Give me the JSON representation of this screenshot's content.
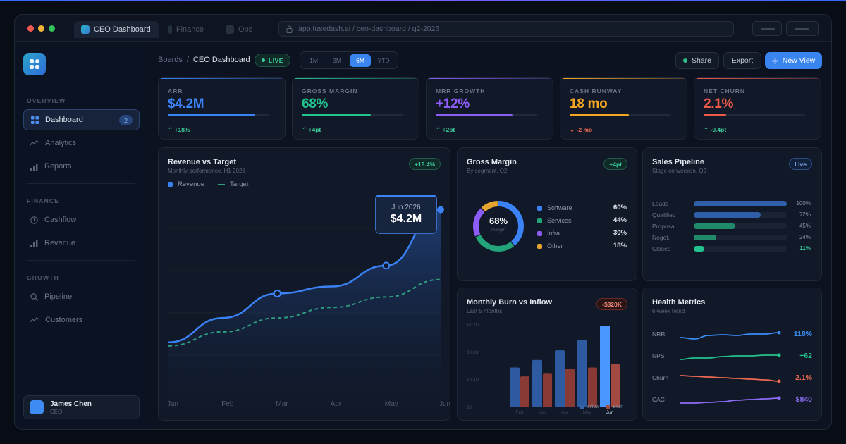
{
  "browser": {
    "tabs": [
      "CEO Dashboard",
      "Finance",
      "Ops"
    ],
    "url": "app.fusedash.ai / ceo-dashboard / q2-2026"
  },
  "sidebar": {
    "sections": {
      "overview": "OVERVIEW",
      "finance": "FINANCE",
      "growth": "GROWTH"
    },
    "items": [
      {
        "label": "Dashboard",
        "icon": "grid-icon",
        "badge": "2",
        "active": true
      },
      {
        "label": "Analytics",
        "icon": "wave-icon"
      },
      {
        "label": "Reports",
        "icon": "bars-icon"
      },
      {
        "label": "Cashflow",
        "icon": "clock-icon"
      },
      {
        "label": "Revenue",
        "icon": "bars-icon"
      },
      {
        "label": "Pipeline",
        "icon": "search-icon"
      },
      {
        "label": "Customers",
        "icon": "wave-icon"
      }
    ],
    "user": {
      "name": "James Chen",
      "role": "CEO"
    }
  },
  "header": {
    "breadcrumb_root": "Boards",
    "breadcrumb_sep": "/",
    "breadcrumb_current": "CEO Dashboard",
    "live": "LIVE",
    "ranges": [
      "1M",
      "3M",
      "6M",
      "YTD"
    ],
    "selected_range": "6M",
    "share": "Share",
    "export": "Export",
    "new_view": "New View"
  },
  "kpis": [
    {
      "label": "ARR",
      "value": "$4.2M",
      "delta": "+18%",
      "direction": "up",
      "progress": 0.86,
      "color": "#3b82f6"
    },
    {
      "label": "GROSS MARGIN",
      "value": "68%",
      "delta": "+4pt",
      "direction": "up",
      "progress": 0.68,
      "color": "#22c38e"
    },
    {
      "label": "MRR GROWTH",
      "value": "+12%",
      "delta": "+2pt",
      "direction": "up",
      "progress": 0.76,
      "color": "#8b5cf6"
    },
    {
      "label": "CASH RUNWAY",
      "value": "18 mo",
      "delta": "-2 mo",
      "direction": "down",
      "progress": 0.58,
      "color": "#f5a524"
    },
    {
      "label": "NET CHURN",
      "value": "2.1%",
      "delta": "-0.4pt",
      "direction": "up",
      "progress": 0.22,
      "color": "#ef5a4a"
    }
  ],
  "revenue": {
    "title": "Revenue vs Target",
    "subtitle": "Monthly performance, H1 2026",
    "badge": "+18.4%",
    "legend_revenue": "Revenue",
    "legend_target": "Target",
    "tooltip_month": "Jun 2026",
    "tooltip_value": "$4.2M"
  },
  "gross_margin": {
    "title": "Gross Margin",
    "subtitle": "By segment, Q2",
    "badge": "+4pt",
    "center_value": "68%",
    "center_label": "margin",
    "segments": [
      {
        "name": "Software",
        "value": "60%",
        "color": "#3b82f6"
      },
      {
        "name": "Services",
        "value": "44%",
        "color": "#22a37a"
      },
      {
        "name": "Infra",
        "value": "30%",
        "color": "#8b5cf6"
      },
      {
        "name": "Other",
        "value": "18%",
        "color": "#e5a530"
      }
    ]
  },
  "pipeline": {
    "title": "Sales Pipeline",
    "subtitle": "Stage conversion, Q2",
    "badge": "Live",
    "stages": [
      {
        "name": "Leads",
        "value": "100%",
        "fraction": 1.0,
        "color": "#2f5fa8"
      },
      {
        "name": "Qualified",
        "value": "72%",
        "fraction": 0.72,
        "color": "#2f5fa8"
      },
      {
        "name": "Proposal",
        "value": "45%",
        "fraction": 0.45,
        "color": "#218a6b"
      },
      {
        "name": "Negot.",
        "value": "24%",
        "fraction": 0.24,
        "color": "#218a6b"
      },
      {
        "name": "Closed",
        "value": "11%",
        "fraction": 0.11,
        "color": "#22c38e"
      }
    ]
  },
  "burn": {
    "title": "Monthly Burn vs Inflow",
    "subtitle": "Last 5 months",
    "badge": "-$320K",
    "legend_inflow": "Inflow",
    "legend_burn": "Burn",
    "inflow_color": "#2d5aa0",
    "burn_color": "#8a3a35"
  },
  "health": {
    "title": "Health Metrics",
    "subtitle": "6-week trend",
    "metrics": [
      {
        "name": "NRR",
        "value": "118%",
        "color": "#3b8cf5"
      },
      {
        "name": "NPS",
        "value": "+62",
        "color": "#22c38e"
      },
      {
        "name": "Churn",
        "value": "2.1%",
        "color": "#ef6a52"
      },
      {
        "name": "CAC",
        "value": "$840",
        "color": "#8b6cf6"
      }
    ]
  },
  "chart_data": [
    {
      "type": "area",
      "title": "Revenue vs Target",
      "categories": [
        "Jan",
        "Feb",
        "Mar",
        "Apr",
        "May",
        "Jun"
      ],
      "series": [
        {
          "name": "Revenue",
          "values": [
            2.3,
            2.65,
            3.0,
            3.1,
            3.4,
            4.2
          ]
        },
        {
          "name": "Target",
          "values": [
            2.25,
            2.45,
            2.65,
            2.8,
            2.95,
            3.2
          ]
        }
      ],
      "ylim": [
        1.5,
        4.6
      ],
      "grid": true
    },
    {
      "type": "bar",
      "title": "Monthly Burn vs Inflow",
      "categories": [
        "Feb",
        "Mar",
        "Apr",
        "May",
        "Jun"
      ],
      "y_ticks": [
        "$1.2M",
        "$0.8M",
        "$0.4M",
        "$0"
      ],
      "ylim": [
        0,
        1.2
      ],
      "series": [
        {
          "name": "Inflow",
          "values": [
            0.58,
            0.69,
            0.83,
            0.98,
            1.19
          ]
        },
        {
          "name": "Burn",
          "values": [
            0.45,
            0.5,
            0.56,
            0.58,
            0.63
          ]
        }
      ]
    },
    {
      "type": "pie",
      "title": "Gross Margin",
      "categories": [
        "Software",
        "Services",
        "Infra",
        "Other"
      ],
      "values": [
        60,
        44,
        30,
        18
      ]
    }
  ]
}
